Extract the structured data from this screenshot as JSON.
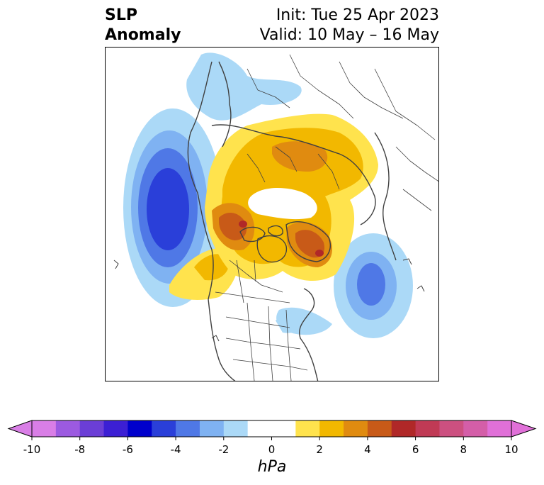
{
  "title": {
    "left_line1": "SLP",
    "left_line2": "Anomaly",
    "right_line1": "Init: Tue 25 Apr 2023",
    "right_line2": "Valid: 10 May – 16 May"
  },
  "map": {
    "projection": "north-polar-stereographic",
    "variable": "sea level pressure anomaly",
    "features": [
      {
        "sign": "negative",
        "region": "NE Pacific / Gulf of Alaska",
        "min_hPa": -6
      },
      {
        "sign": "negative",
        "region": "North Atlantic",
        "min_hPa": -5
      },
      {
        "sign": "negative",
        "region": "Eastern Siberia / NW Pacific",
        "min_hPa": -2
      },
      {
        "sign": "negative",
        "region": "Eastern US coast",
        "min_hPa": -2
      },
      {
        "sign": "positive",
        "region": "Northern Canada / Beaufort",
        "max_hPa": 7
      },
      {
        "sign": "positive",
        "region": "Greenland",
        "max_hPa": 7
      },
      {
        "sign": "positive",
        "region": "Northern Europe / Scandinavia",
        "max_hPa": 4
      },
      {
        "sign": "positive",
        "region": "Eastern Pacific",
        "max_hPa": 2
      }
    ]
  },
  "colorbar": {
    "unit": "hPa",
    "extend": "both",
    "levels": [
      -10,
      -9,
      -8,
      -7,
      -6,
      -5,
      -4,
      -3,
      -2,
      -1,
      1,
      2,
      3,
      4,
      5,
      6,
      7,
      8,
      9,
      10
    ],
    "colors": [
      "#d97ee6",
      "#9c5ae0",
      "#6b3ed6",
      "#3c1fd4",
      "#0000cc",
      "#2a3fd9",
      "#4f78e6",
      "#7fb2f2",
      "#abd9f7",
      "#ffffff",
      "#ffe34d",
      "#f2b800",
      "#e08b10",
      "#c85a18",
      "#b02828",
      "#c03a55",
      "#cc5080",
      "#d45ea8",
      "#e070d8"
    ],
    "under_color": "#d97ee6",
    "over_color": "#e070d8",
    "tick_labels": [
      "-10",
      "-8",
      "-6",
      "-4",
      "-2",
      "0",
      "2",
      "4",
      "6",
      "8",
      "10"
    ],
    "tick_values": [
      -10,
      -8,
      -6,
      -4,
      -2,
      0,
      2,
      4,
      6,
      8,
      10
    ]
  }
}
